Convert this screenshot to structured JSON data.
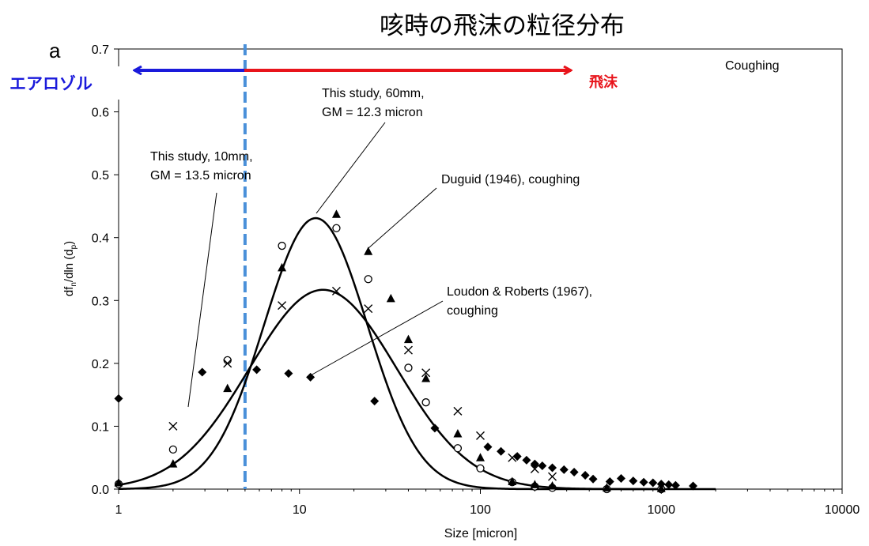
{
  "chart_data": {
    "type": "scatter",
    "title": "咳時の飛沫の粒径分布",
    "panel_label": "a",
    "panel_title": "Coughing",
    "xlabel": "Size [micron]",
    "ylabel": "df_n/dln (d_p)",
    "ylabel_parts": {
      "pre": "df",
      "sub1": "n",
      "mid": "/dln (d",
      "sub2": "p",
      "post": ")"
    },
    "x_scale": "log",
    "xlim": [
      1,
      10000
    ],
    "ylim": [
      0,
      0.7
    ],
    "x_ticks": [
      1,
      10,
      100,
      1000,
      10000
    ],
    "x_tick_labels": [
      "1",
      "10",
      "100",
      "1000",
      "10000"
    ],
    "y_ticks": [
      0,
      0.1,
      0.2,
      0.3,
      0.4,
      0.5,
      0.6,
      0.7
    ],
    "y_tick_labels": [
      "0.0",
      "0.1",
      "0.2",
      "0.3",
      "0.4",
      "0.5",
      "0.6",
      "0.7"
    ],
    "grid": false,
    "threshold": {
      "x": 5,
      "color": "#4a90d9",
      "style": "dashed"
    },
    "region_labels": {
      "aerosol": {
        "text": "エアロゾル",
        "color": "#1a1adb"
      },
      "droplet": {
        "text": "飛沫",
        "color": "#e8141b"
      }
    },
    "annotations": {
      "study60": [
        "This study, 60mm,",
        "GM = 12.3 micron"
      ],
      "study10": [
        "This study, 10mm,",
        "GM = 13.5 micron"
      ],
      "duguid": [
        "Duguid (1946), coughing"
      ],
      "loudon": [
        "Loudon & Roberts (1967),",
        "coughing"
      ]
    },
    "series": [
      {
        "marker": "circle",
        "x": [
          1,
          2,
          4,
          8,
          16,
          24,
          40,
          50,
          75,
          100,
          150,
          200,
          250,
          500,
          1000
        ],
        "y": [
          0.008,
          0.063,
          0.205,
          0.387,
          0.415,
          0.334,
          0.193,
          0.138,
          0.065,
          0.033,
          0.011,
          0.004,
          0.002,
          0.0,
          0.0
        ]
      },
      {
        "marker": "x",
        "x": [
          2,
          4,
          8,
          16,
          24,
          40,
          50,
          75,
          100,
          150,
          200,
          250
        ],
        "y": [
          0.1,
          0.2,
          0.292,
          0.315,
          0.287,
          0.221,
          0.185,
          0.124,
          0.085,
          0.05,
          0.032,
          0.02
        ]
      },
      {
        "marker": "triangle",
        "x": [
          1,
          2,
          4,
          8,
          16,
          24,
          32,
          40,
          50,
          75,
          100,
          150,
          200,
          250,
          500,
          1000
        ],
        "y": [
          0.01,
          0.04,
          0.16,
          0.352,
          0.437,
          0.378,
          0.303,
          0.238,
          0.176,
          0.088,
          0.05,
          0.012,
          0.007,
          0.005,
          0.002,
          0.001
        ]
      },
      {
        "marker": "diamond",
        "x": [
          1,
          2.9,
          5.8,
          8.7,
          11.5,
          26,
          56,
          110,
          130,
          160,
          180,
          200,
          220,
          250,
          290,
          330,
          380,
          420,
          520,
          600,
          700,
          800,
          900,
          1000,
          1100,
          1200,
          1500
        ],
        "y": [
          0.144,
          0.186,
          0.19,
          0.184,
          0.178,
          0.14,
          0.097,
          0.067,
          0.06,
          0.052,
          0.046,
          0.04,
          0.037,
          0.034,
          0.031,
          0.027,
          0.022,
          0.016,
          0.012,
          0.017,
          0.013,
          0.011,
          0.01,
          0.008,
          0.007,
          0.006,
          0.005
        ]
      }
    ],
    "fit_curves": [
      {
        "gm": 12.3,
        "gsd": 1.93,
        "scale": 0.431,
        "xrange": [
          1,
          1000
        ]
      },
      {
        "gm": 13.5,
        "gsd": 2.55,
        "scale": 0.317,
        "xrange": [
          1,
          2000
        ]
      }
    ]
  }
}
